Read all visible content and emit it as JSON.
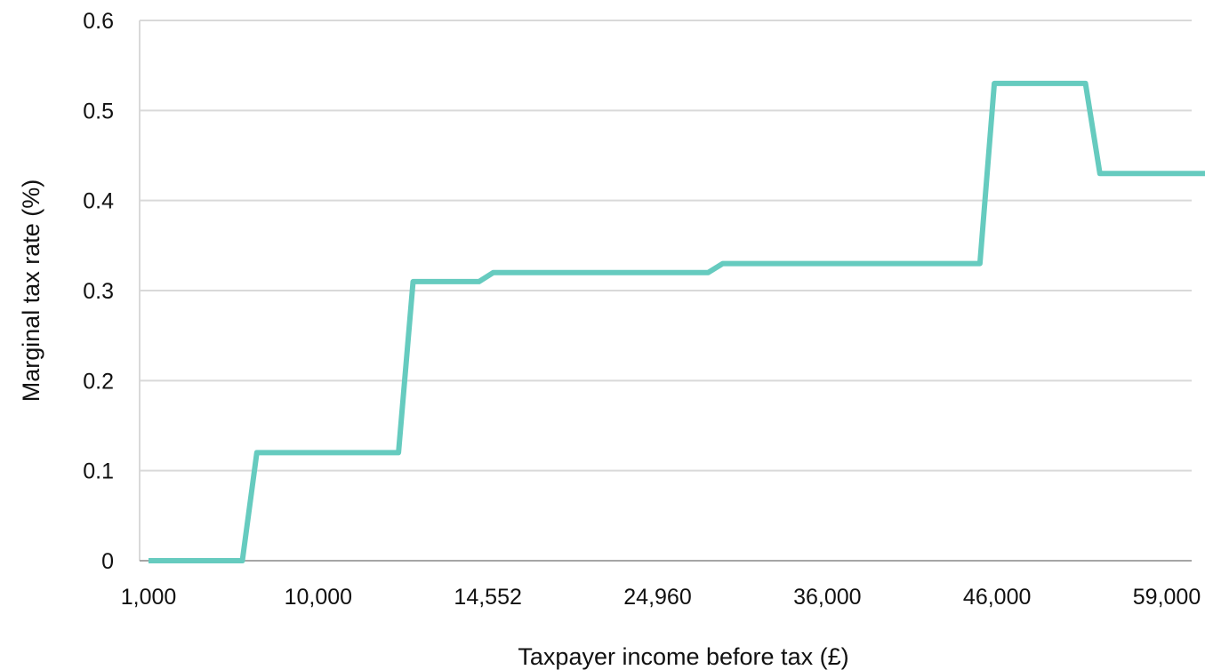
{
  "chart_data": {
    "type": "line",
    "xlabel": "Taxpayer income before tax (£)",
    "ylabel": "Marginal tax rate (%)",
    "x_tick_labels": [
      "1,000",
      "10,000",
      "14,552",
      "24,960",
      "36,000",
      "46,000",
      "59,000"
    ],
    "y_tick_labels": [
      "0",
      "0.1",
      "0.2",
      "0.3",
      "0.4",
      "0.5",
      "0.6"
    ],
    "ylim": [
      0,
      0.6
    ],
    "grid": "horizontal",
    "legend": "none",
    "series": [
      {
        "color": "#66cbbf",
        "points": [
          {
            "pos": 0,
            "y": 0
          },
          {
            "pos": 0.553,
            "y": 0
          },
          {
            "pos": 0.638,
            "y": 0.12
          },
          {
            "pos": 1.473,
            "y": 0.12
          },
          {
            "pos": 1.559,
            "y": 0.31
          },
          {
            "pos": 1.947,
            "y": 0.31
          },
          {
            "pos": 2.032,
            "y": 0.32
          },
          {
            "pos": 3.298,
            "y": 0.32
          },
          {
            "pos": 3.384,
            "y": 0.33
          },
          {
            "pos": 4.899,
            "y": 0.33
          },
          {
            "pos": 4.984,
            "y": 0.53
          },
          {
            "pos": 5.521,
            "y": 0.53
          },
          {
            "pos": 5.606,
            "y": 0.43
          },
          {
            "pos": 6.229,
            "y": 0.43
          }
        ]
      }
    ]
  }
}
